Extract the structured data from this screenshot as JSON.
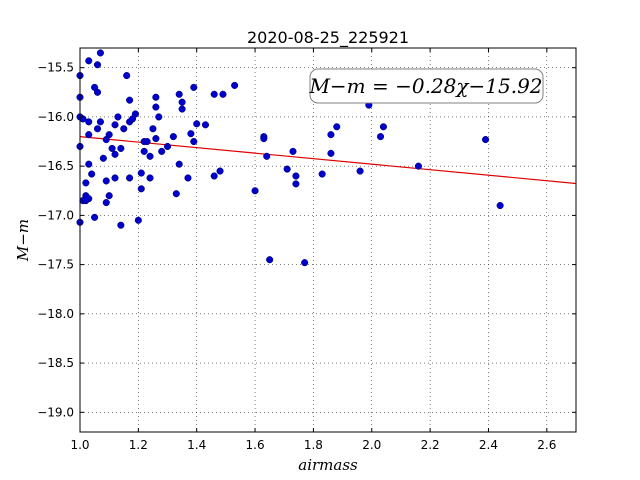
{
  "chart_data": {
    "type": "scatter",
    "title": "2020-08-25_225921",
    "xlabel": "airmass",
    "ylabel": "M−m",
    "xlim": [
      1.0,
      2.7
    ],
    "ylim": [
      -19.2,
      -15.3
    ],
    "y_inverted": true,
    "grid": true,
    "x_ticks": [
      1.0,
      1.2,
      1.4,
      1.6,
      1.8,
      2.0,
      2.2,
      2.4,
      2.6
    ],
    "x_tick_labels": [
      "1.0",
      "1.2",
      "1.4",
      "1.6",
      "1.8",
      "2.0",
      "2.2",
      "2.4",
      "2.6"
    ],
    "y_ticks": [
      -15.5,
      -16.0,
      -16.5,
      -17.0,
      -17.5,
      -18.0,
      -18.5,
      -19.0
    ],
    "y_tick_labels": [
      "−15.5",
      "−16.0",
      "−16.5",
      "−17.0",
      "−17.5",
      "−18.0",
      "−18.5",
      "−19.0"
    ],
    "annotation": "M−m = −0.28χ−15.92",
    "annotation_placement": "top-right",
    "fit_line": {
      "slope": -0.28,
      "intercept": -15.92,
      "color": "#e00000"
    },
    "point_color": "#0000cc",
    "points": [
      [
        1.0,
        -15.8
      ],
      [
        1.0,
        -16.0
      ],
      [
        1.0,
        -16.3
      ],
      [
        1.0,
        -17.07
      ],
      [
        1.0,
        -15.58
      ],
      [
        1.01,
        -16.02
      ],
      [
        1.01,
        -16.85
      ],
      [
        1.02,
        -16.67
      ],
      [
        1.02,
        -16.85
      ],
      [
        1.02,
        -16.8
      ],
      [
        1.03,
        -15.43
      ],
      [
        1.03,
        -16.05
      ],
      [
        1.03,
        -16.18
      ],
      [
        1.03,
        -16.48
      ],
      [
        1.03,
        -16.83
      ],
      [
        1.04,
        -16.58
      ],
      [
        1.05,
        -15.7
      ],
      [
        1.05,
        -17.02
      ],
      [
        1.06,
        -15.75
      ],
      [
        1.06,
        -15.47
      ],
      [
        1.06,
        -16.12
      ],
      [
        1.07,
        -15.35
      ],
      [
        1.07,
        -16.05
      ],
      [
        1.08,
        -16.42
      ],
      [
        1.09,
        -16.23
      ],
      [
        1.09,
        -16.65
      ],
      [
        1.09,
        -16.87
      ],
      [
        1.1,
        -16.18
      ],
      [
        1.1,
        -16.8
      ],
      [
        1.11,
        -16.32
      ],
      [
        1.12,
        -16.08
      ],
      [
        1.12,
        -16.38
      ],
      [
        1.12,
        -16.62
      ],
      [
        1.13,
        -16.0
      ],
      [
        1.14,
        -16.32
      ],
      [
        1.14,
        -17.1
      ],
      [
        1.15,
        -16.12
      ],
      [
        1.16,
        -15.58
      ],
      [
        1.17,
        -16.62
      ],
      [
        1.17,
        -15.83
      ],
      [
        1.17,
        -16.05
      ],
      [
        1.18,
        -16.02
      ],
      [
        1.19,
        -15.97
      ],
      [
        1.2,
        -17.05
      ],
      [
        1.21,
        -16.57
      ],
      [
        1.21,
        -16.73
      ],
      [
        1.22,
        -16.25
      ],
      [
        1.22,
        -16.35
      ],
      [
        1.23,
        -16.25
      ],
      [
        1.24,
        -16.4
      ],
      [
        1.24,
        -16.62
      ],
      [
        1.25,
        -16.12
      ],
      [
        1.26,
        -15.8
      ],
      [
        1.26,
        -15.9
      ],
      [
        1.26,
        -16.22
      ],
      [
        1.27,
        -16.0
      ],
      [
        1.28,
        -16.35
      ],
      [
        1.3,
        -16.3
      ],
      [
        1.32,
        -16.2
      ],
      [
        1.33,
        -16.78
      ],
      [
        1.34,
        -16.48
      ],
      [
        1.34,
        -15.77
      ],
      [
        1.35,
        -15.85
      ],
      [
        1.35,
        -15.92
      ],
      [
        1.37,
        -16.62
      ],
      [
        1.38,
        -16.17
      ],
      [
        1.39,
        -16.25
      ],
      [
        1.39,
        -15.7
      ],
      [
        1.4,
        -16.07
      ],
      [
        1.43,
        -16.08
      ],
      [
        1.46,
        -16.6
      ],
      [
        1.46,
        -15.77
      ],
      [
        1.48,
        -16.55
      ],
      [
        1.49,
        -15.77
      ],
      [
        1.53,
        -15.68
      ],
      [
        1.6,
        -16.75
      ],
      [
        1.63,
        -16.2
      ],
      [
        1.63,
        -16.22
      ],
      [
        1.64,
        -16.4
      ],
      [
        1.65,
        -17.45
      ],
      [
        1.71,
        -16.53
      ],
      [
        1.73,
        -16.35
      ],
      [
        1.74,
        -16.6
      ],
      [
        1.74,
        -16.68
      ],
      [
        1.77,
        -17.48
      ],
      [
        1.83,
        -16.58
      ],
      [
        1.86,
        -16.37
      ],
      [
        1.86,
        -16.18
      ],
      [
        1.88,
        -16.1
      ],
      [
        1.96,
        -16.55
      ],
      [
        1.99,
        -15.88
      ],
      [
        2.03,
        -16.2
      ],
      [
        2.04,
        -16.1
      ],
      [
        2.16,
        -16.5
      ],
      [
        2.39,
        -16.23
      ],
      [
        2.44,
        -16.9
      ]
    ]
  }
}
